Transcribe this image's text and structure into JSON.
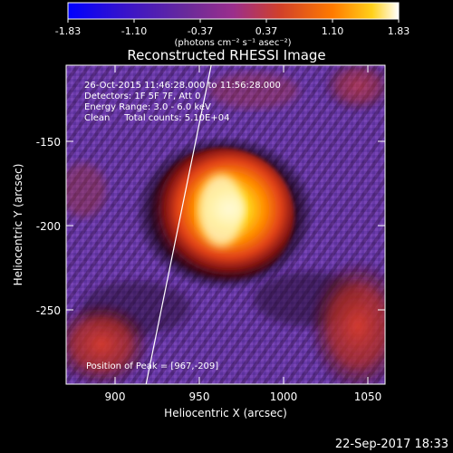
{
  "colorbar": {
    "ticks": [
      "-1.83",
      "-1.10",
      "-0.37",
      "0.37",
      "1.10",
      "1.83"
    ],
    "unit": "(photons cm⁻² s⁻¹ asec⁻²)",
    "stops": [
      "#0000ff",
      "#3a14c8",
      "#6a2a9a",
      "#9b2e8c",
      "#d0402a",
      "#ff7a00",
      "#ffd11a",
      "#ffffff"
    ]
  },
  "title": "Reconstructed RHESSI Image",
  "info": {
    "time": "26-Oct-2015 11:46:28.000 to 11:56:28.000",
    "detectors": "Detectors: 1F 5F 7F, Att 0",
    "energy": "Energy Range: 3.0 - 6.0 keV",
    "clean": "Clean     Total counts: 5.10E+04",
    "peak": "Position of Peak = [967,-209]"
  },
  "axes": {
    "xlabel": "Heliocentric X (arcsec)",
    "ylabel": "Heliocentric Y (arcsec)",
    "xticks": [
      "900",
      "950",
      "1000",
      "1050"
    ],
    "yticks": [
      "-150",
      "-200",
      "-250"
    ],
    "xrange": [
      868,
      1062
    ],
    "yrange": [
      -294,
      -100
    ]
  },
  "footer": {
    "timestamp": "22-Sep-2017 18:33"
  }
}
